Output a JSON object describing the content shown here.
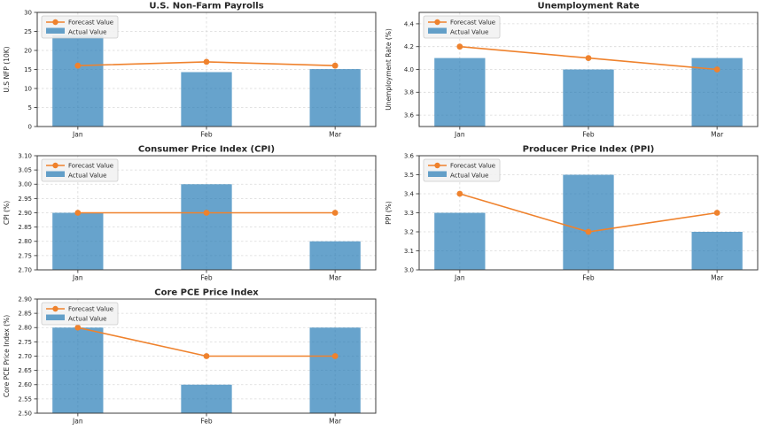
{
  "figure": {
    "background": "#ffffff",
    "rows": 3,
    "cols": 2
  },
  "legend": {
    "forecast_label": "Forecast Value",
    "actual_label": "Actual Value",
    "position": "upper left"
  },
  "colors": {
    "bar_fill": "#1f77b4",
    "bar_opacity": 0.68,
    "line": "#ef822d",
    "marker": "#ef822d",
    "grid": "#d9d9d9",
    "spine": "#3c3c3c",
    "text": "#262626",
    "legend_bg": "#f2f2f2",
    "legend_border": "#cccccc"
  },
  "chart_data": [
    {
      "type": "bar+line",
      "title": "U.S. Non-Farm Payrolls",
      "ylabel": "U.S NFP (10K)",
      "xlabel": "",
      "categories": [
        "Jan",
        "Feb",
        "Mar"
      ],
      "series": [
        {
          "name": "Forecast Value",
          "render": "line",
          "values": [
            16,
            17,
            16
          ]
        },
        {
          "name": "Actual Value",
          "render": "bar",
          "values": [
            24,
            14.3,
            15.1
          ]
        }
      ],
      "ylim": [
        0,
        30
      ],
      "yticks": [
        0,
        5,
        10,
        15,
        20,
        25,
        30
      ],
      "ytick_labels": [
        "0",
        "5",
        "10",
        "15",
        "20",
        "25",
        "30"
      ],
      "grid": true,
      "legend_position": "upper left"
    },
    {
      "type": "bar+line",
      "title": "Unemployment Rate",
      "ylabel": "Unemployment Rate (%)",
      "xlabel": "",
      "categories": [
        "Jan",
        "Feb",
        "Mar"
      ],
      "series": [
        {
          "name": "Forecast Value",
          "render": "line",
          "values": [
            4.2,
            4.1,
            4.0
          ]
        },
        {
          "name": "Actual Value",
          "render": "bar",
          "values": [
            4.1,
            4.0,
            4.1
          ]
        }
      ],
      "ylim": [
        3.5,
        4.5
      ],
      "yticks": [
        3.6,
        3.8,
        4.0,
        4.2,
        4.4
      ],
      "ytick_labels": [
        "3.6",
        "3.8",
        "4.0",
        "4.2",
        "4.4"
      ],
      "grid": true,
      "legend_position": "upper left"
    },
    {
      "type": "bar+line",
      "title": "Consumer Price Index (CPI)",
      "ylabel": "CPI (%)",
      "xlabel": "",
      "categories": [
        "Jan",
        "Feb",
        "Mar"
      ],
      "series": [
        {
          "name": "Forecast Value",
          "render": "line",
          "values": [
            2.9,
            2.9,
            2.9
          ]
        },
        {
          "name": "Actual Value",
          "render": "bar",
          "values": [
            2.9,
            3.0,
            2.8
          ]
        }
      ],
      "ylim": [
        2.7,
        3.1
      ],
      "yticks": [
        2.7,
        2.75,
        2.8,
        2.85,
        2.9,
        2.95,
        3.0,
        3.05,
        3.1
      ],
      "ytick_labels": [
        "2.70",
        "2.75",
        "2.80",
        "2.85",
        "2.90",
        "2.95",
        "3.00",
        "3.05",
        "3.10"
      ],
      "grid": true,
      "legend_position": "upper left"
    },
    {
      "type": "bar+line",
      "title": "Producer Price Index (PPI)",
      "ylabel": "PPI (%)",
      "xlabel": "",
      "categories": [
        "Jan",
        "Feb",
        "Mar"
      ],
      "series": [
        {
          "name": "Forecast Value",
          "render": "line",
          "values": [
            3.4,
            3.2,
            3.3
          ]
        },
        {
          "name": "Actual Value",
          "render": "bar",
          "values": [
            3.3,
            3.5,
            3.2
          ]
        }
      ],
      "ylim": [
        3.0,
        3.6
      ],
      "yticks": [
        3.0,
        3.1,
        3.2,
        3.3,
        3.4,
        3.5,
        3.6
      ],
      "ytick_labels": [
        "3.0",
        "3.1",
        "3.2",
        "3.3",
        "3.4",
        "3.5",
        "3.6"
      ],
      "grid": true,
      "legend_position": "upper left"
    },
    {
      "type": "bar+line",
      "title": "Core PCE Price Index",
      "ylabel": "Core PCE Price Index (%)",
      "xlabel": "",
      "categories": [
        "Jan",
        "Feb",
        "Mar"
      ],
      "series": [
        {
          "name": "Forecast Value",
          "render": "line",
          "values": [
            2.8,
            2.7,
            2.7
          ]
        },
        {
          "name": "Actual Value",
          "render": "bar",
          "values": [
            2.8,
            2.6,
            2.8
          ]
        }
      ],
      "ylim": [
        2.5,
        2.9
      ],
      "yticks": [
        2.5,
        2.55,
        2.6,
        2.65,
        2.7,
        2.75,
        2.8,
        2.85,
        2.9
      ],
      "ytick_labels": [
        "2.50",
        "2.55",
        "2.60",
        "2.65",
        "2.70",
        "2.75",
        "2.80",
        "2.85",
        "2.90"
      ],
      "grid": true,
      "legend_position": "upper left"
    }
  ]
}
